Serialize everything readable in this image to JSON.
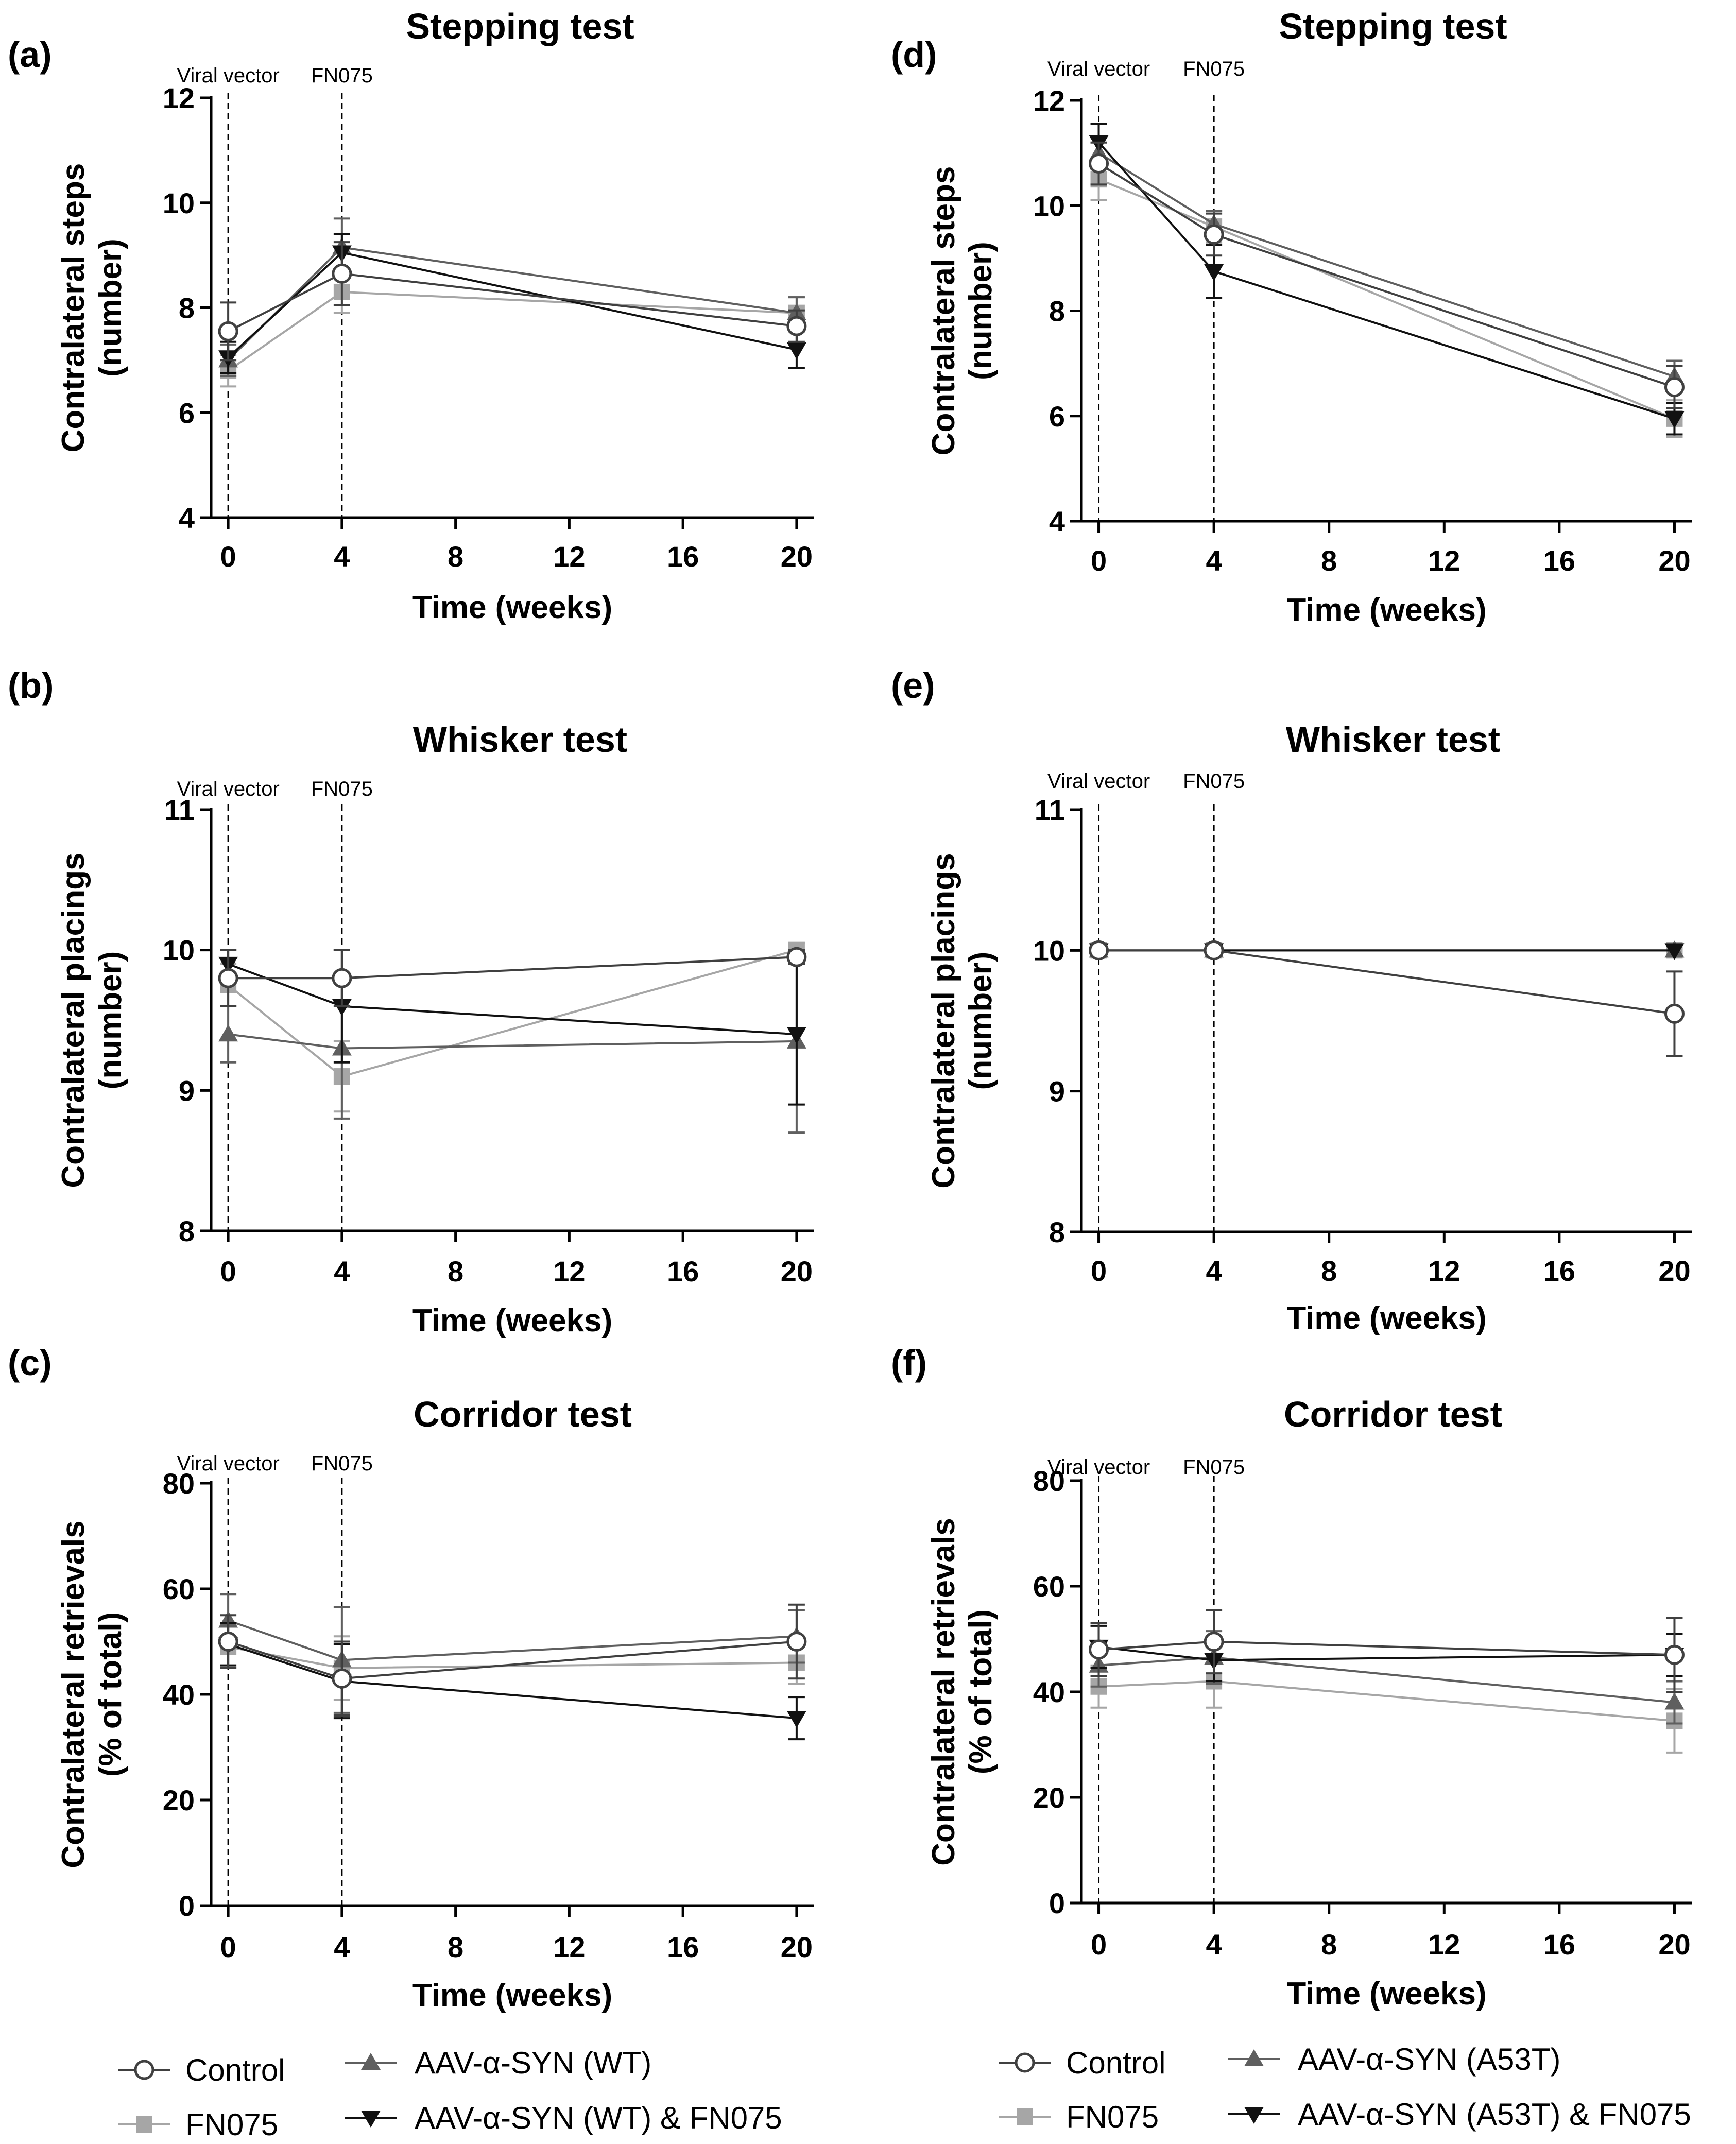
{
  "figure": {
    "legend_left": [
      {
        "label": "Control"
      },
      {
        "label": "FN075"
      },
      {
        "label": "AAV-α-SYN (WT)"
      },
      {
        "label": "AAV-α-SYN (WT) & FN075"
      }
    ],
    "legend_right": [
      {
        "label": "Control"
      },
      {
        "label": "FN075"
      },
      {
        "label": "AAV-α-SYN (A53T)"
      },
      {
        "label": "AAV-α-SYN (A53T) & FN075"
      }
    ]
  },
  "styles": {
    "Control": {
      "marker": "circle",
      "color": "#404040"
    },
    "FN075": {
      "marker": "square",
      "color": "#a6a6a6"
    },
    "SYN": {
      "marker": "triangle-up",
      "color": "#5f5f5f"
    },
    "SYN_FN075": {
      "marker": "triangle-down",
      "color": "#111111"
    }
  },
  "chart_data": [
    {
      "panel": "(a)",
      "type": "line",
      "title": "Stepping test",
      "xlabel": "Time (weeks)",
      "ylabel": [
        "Contralateral steps",
        "(number)"
      ],
      "x_ticks": [
        0,
        4,
        8,
        12,
        16,
        20
      ],
      "xlim": [
        -0.6,
        20.6
      ],
      "ylim": [
        4,
        12
      ],
      "y_ticks": [
        4,
        6,
        8,
        10,
        12
      ],
      "events": [
        {
          "x": 0,
          "label": "Viral vector"
        },
        {
          "x": 4,
          "label": "FN075"
        }
      ],
      "series": [
        {
          "name": "Control",
          "key": "Control",
          "x": [
            0,
            4,
            20
          ],
          "y": [
            7.55,
            8.65,
            7.65
          ],
          "err": [
            0.55,
            0.6,
            0.3
          ]
        },
        {
          "name": "FN075",
          "key": "FN075",
          "x": [
            0,
            4,
            20
          ],
          "y": [
            6.8,
            8.3,
            7.9
          ],
          "err": [
            0.3,
            0.4,
            0.3
          ]
        },
        {
          "name": "AAV-α-SYN (WT)",
          "key": "SYN",
          "x": [
            0,
            4,
            20
          ],
          "y": [
            7.0,
            9.15,
            7.9
          ],
          "err": [
            0.3,
            0.55,
            0.3
          ]
        },
        {
          "name": "AAV-α-SYN (WT) & FN075",
          "key": "SYN_FN075",
          "x": [
            0,
            4,
            20
          ],
          "y": [
            7.05,
            9.05,
            7.2
          ],
          "err": [
            0.3,
            0.35,
            0.35
          ]
        }
      ]
    },
    {
      "panel": "(b)",
      "type": "line",
      "title": "Whisker test",
      "xlabel": "Time (weeks)",
      "ylabel": [
        "Contralateral placings",
        "(number)"
      ],
      "x_ticks": [
        0,
        4,
        8,
        12,
        16,
        20
      ],
      "xlim": [
        -0.6,
        20.6
      ],
      "ylim": [
        8,
        11
      ],
      "y_ticks": [
        8,
        9,
        10,
        11
      ],
      "events": [
        {
          "x": 0,
          "label": "Viral vector"
        },
        {
          "x": 4,
          "label": "FN075"
        }
      ],
      "series": [
        {
          "name": "Control",
          "key": "Control",
          "x": [
            0,
            4,
            20
          ],
          "y": [
            9.8,
            9.8,
            9.95
          ],
          "err": [
            0.2,
            0.2,
            0.05
          ]
        },
        {
          "name": "FN075",
          "key": "FN075",
          "x": [
            0,
            4,
            20
          ],
          "y": [
            9.75,
            9.1,
            10.0
          ],
          "err": [
            0.15,
            0.25,
            0.05
          ]
        },
        {
          "name": "AAV-α-SYN (WT)",
          "key": "SYN",
          "x": [
            0,
            4,
            20
          ],
          "y": [
            9.4,
            9.3,
            9.35
          ],
          "err": [
            0.2,
            0.5,
            0.65
          ]
        },
        {
          "name": "AAV-α-SYN (WT) & FN075",
          "key": "SYN_FN075",
          "x": [
            0,
            4,
            20
          ],
          "y": [
            9.9,
            9.6,
            9.4
          ],
          "err": [
            0.1,
            0.4,
            0.5
          ]
        }
      ]
    },
    {
      "panel": "(c)",
      "type": "line",
      "title": "Corridor test",
      "xlabel": "Time (weeks)",
      "ylabel": [
        "Contralateral retrievals",
        "(% of total)"
      ],
      "x_ticks": [
        0,
        4,
        8,
        12,
        16,
        20
      ],
      "xlim": [
        -0.6,
        20.6
      ],
      "ylim": [
        0,
        80
      ],
      "y_ticks": [
        0,
        20,
        40,
        60,
        80
      ],
      "events": [
        {
          "x": 0,
          "label": "Viral vector"
        },
        {
          "x": 4,
          "label": "FN075"
        }
      ],
      "series": [
        {
          "name": "Control",
          "key": "Control",
          "x": [
            0,
            4,
            20
          ],
          "y": [
            50,
            43,
            50
          ],
          "err": [
            5,
            7,
            7
          ]
        },
        {
          "name": "FN075",
          "key": "FN075",
          "x": [
            0,
            4,
            20
          ],
          "y": [
            49,
            45,
            46
          ],
          "err": [
            4,
            6,
            4
          ]
        },
        {
          "name": "AAV-α-SYN (WT)",
          "key": "SYN",
          "x": [
            0,
            4,
            20
          ],
          "y": [
            54,
            46.5,
            51
          ],
          "err": [
            5,
            10,
            5
          ]
        },
        {
          "name": "AAV-α-SYN (WT) & FN075",
          "key": "SYN_FN075",
          "x": [
            0,
            4,
            20
          ],
          "y": [
            49.5,
            42.5,
            35.5
          ],
          "err": [
            4,
            7,
            4
          ]
        }
      ]
    },
    {
      "panel": "(d)",
      "type": "line",
      "title": "Stepping test",
      "xlabel": "Time (weeks)",
      "ylabel": [
        "Contralateral steps",
        "(number)"
      ],
      "x_ticks": [
        0,
        4,
        8,
        12,
        16,
        20
      ],
      "xlim": [
        -0.6,
        20.6
      ],
      "ylim": [
        4,
        12
      ],
      "y_ticks": [
        4,
        6,
        8,
        10,
        12
      ],
      "events": [
        {
          "x": 0,
          "label": "Viral vector"
        },
        {
          "x": 4,
          "label": "FN075"
        }
      ],
      "series": [
        {
          "name": "Control",
          "key": "Control",
          "x": [
            0,
            4,
            20
          ],
          "y": [
            10.8,
            9.45,
            6.55
          ],
          "err": [
            0.4,
            0.4,
            0.4
          ]
        },
        {
          "name": "FN075",
          "key": "FN075",
          "x": [
            0,
            4,
            20
          ],
          "y": [
            10.5,
            9.6,
            5.95
          ],
          "err": [
            0.4,
            0.3,
            0.35
          ]
        },
        {
          "name": "AAV-α-SYN (A53T)",
          "key": "SYN",
          "x": [
            0,
            4,
            20
          ],
          "y": [
            11.0,
            9.65,
            6.75
          ],
          "err": [
            0.3,
            0.25,
            0.3
          ]
        },
        {
          "name": "AAV-α-SYN (A53T) & FN075",
          "key": "SYN_FN075",
          "x": [
            0,
            4,
            20
          ],
          "y": [
            11.2,
            8.75,
            5.95
          ],
          "err": [
            0.35,
            0.5,
            0.3
          ]
        }
      ]
    },
    {
      "panel": "(e)",
      "type": "line",
      "title": "Whisker test",
      "xlabel": "Time (weeks)",
      "ylabel": [
        "Contralateral placings",
        "(number)"
      ],
      "x_ticks": [
        0,
        4,
        8,
        12,
        16,
        20
      ],
      "xlim": [
        -0.6,
        20.6
      ],
      "ylim": [
        8,
        11
      ],
      "y_ticks": [
        8,
        9,
        10,
        11
      ],
      "events": [
        {
          "x": 0,
          "label": "Viral vector"
        },
        {
          "x": 4,
          "label": "FN075"
        }
      ],
      "series": [
        {
          "name": "FN075",
          "key": "FN075",
          "x": [
            0,
            4,
            20
          ],
          "y": [
            10.0,
            10.0,
            10.0
          ],
          "err": [
            0,
            0,
            0
          ]
        },
        {
          "name": "AAV-α-SYN (A53T)",
          "key": "SYN",
          "x": [
            0,
            4,
            20
          ],
          "y": [
            10.0,
            10.0,
            10.0
          ],
          "err": [
            0,
            0,
            0
          ]
        },
        {
          "name": "AAV-α-SYN (A53T) & FN075",
          "key": "SYN_FN075",
          "x": [
            0,
            4,
            20
          ],
          "y": [
            10.0,
            10.0,
            10.0
          ],
          "err": [
            0,
            0,
            0
          ]
        },
        {
          "name": "Control",
          "key": "Control",
          "x": [
            0,
            4,
            20
          ],
          "y": [
            10.0,
            10.0,
            9.55
          ],
          "err": [
            0,
            0,
            0.3
          ]
        }
      ]
    },
    {
      "panel": "(f)",
      "type": "line",
      "title": "Corridor test",
      "xlabel": "Time (weeks)",
      "ylabel": [
        "Contralateral retrievals",
        "(% of total)"
      ],
      "x_ticks": [
        0,
        4,
        8,
        12,
        16,
        20
      ],
      "xlim": [
        -0.6,
        20.6
      ],
      "ylim": [
        0,
        80
      ],
      "y_ticks": [
        0,
        20,
        40,
        60,
        80
      ],
      "events": [
        {
          "x": 0,
          "label": "Viral vector"
        },
        {
          "x": 4,
          "label": "FN075"
        }
      ],
      "series": [
        {
          "name": "Control",
          "key": "Control",
          "x": [
            0,
            4,
            20
          ],
          "y": [
            48,
            49.5,
            47
          ],
          "err": [
            5,
            6,
            7
          ]
        },
        {
          "name": "FN075",
          "key": "FN075",
          "x": [
            0,
            4,
            20
          ],
          "y": [
            41,
            42,
            34.5
          ],
          "err": [
            4,
            5,
            6
          ]
        },
        {
          "name": "AAV-α-SYN (A53T)",
          "key": "SYN",
          "x": [
            0,
            4,
            20
          ],
          "y": [
            45,
            46.5,
            38
          ],
          "err": [
            4,
            5,
            4
          ]
        },
        {
          "name": "AAV-α-SYN (A53T) & FN075",
          "key": "SYN_FN075",
          "x": [
            0,
            4,
            20
          ],
          "y": [
            48.5,
            46,
            47
          ],
          "err": [
            4,
            4,
            4
          ]
        }
      ]
    }
  ]
}
